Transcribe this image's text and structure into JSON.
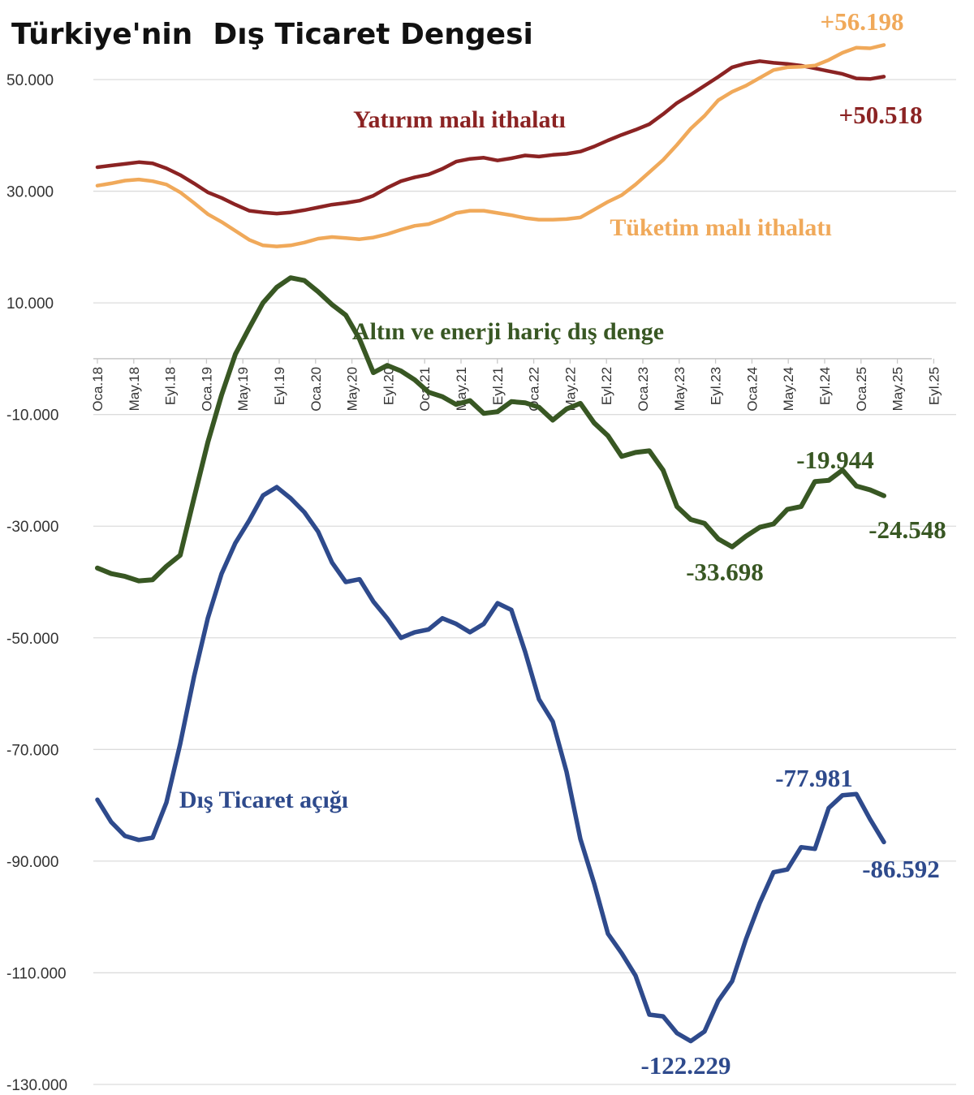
{
  "chart_data": {
    "type": "line",
    "title": "Türkiye'nin  Dış Ticaret Dengesi",
    "ylim": [
      -130000,
      50000
    ],
    "y_ticks": [
      {
        "value": 50000,
        "label": "50.000"
      },
      {
        "value": 30000,
        "label": "30.000"
      },
      {
        "value": 10000,
        "label": "10.000"
      },
      {
        "value": -10000,
        "label": "-10.000"
      },
      {
        "value": -30000,
        "label": "-30.000"
      },
      {
        "value": -50000,
        "label": "-50.000"
      },
      {
        "value": -70000,
        "label": "-70.000"
      },
      {
        "value": -90000,
        "label": "-90.000"
      },
      {
        "value": -110000,
        "label": "-110.000"
      },
      {
        "value": -130000,
        "label": "-130.000"
      }
    ],
    "x_ticks": [
      "Oca.18",
      "May.18",
      "Eyl.18",
      "Oca.19",
      "May.19",
      "Eyl.19",
      "Oca.20",
      "May.20",
      "Eyl.20",
      "Oca.21",
      "May.21",
      "Eyl.21",
      "Oca.22",
      "May.22",
      "Eyl.22",
      "Oca.23",
      "May.23",
      "Eyl.23",
      "Oca.24",
      "May.24",
      "Eyl.24",
      "Oca.25",
      "May.25",
      "Eyl.25"
    ],
    "grid": true,
    "legend": "none (series labelled directly on chart)",
    "series": [
      {
        "name": "Yatırım malı ithalatı",
        "color": "#8b2323",
        "label_pos": [
          566,
          157
        ],
        "end_annotation": {
          "text": "+50.518",
          "pos": [
            1085,
            152
          ]
        },
        "points": [
          [
            0,
            34300
          ],
          [
            1,
            34600
          ],
          [
            2,
            34900
          ],
          [
            3,
            35200
          ],
          [
            4,
            35000
          ],
          [
            5,
            34100
          ],
          [
            6,
            32900
          ],
          [
            7,
            31400
          ],
          [
            8,
            29800
          ],
          [
            9,
            28800
          ],
          [
            10,
            27600
          ],
          [
            11,
            26500
          ],
          [
            12,
            26200
          ],
          [
            13,
            26000
          ],
          [
            14,
            26200
          ],
          [
            15,
            26600
          ],
          [
            16,
            27100
          ],
          [
            17,
            27600
          ],
          [
            18,
            27900
          ],
          [
            19,
            28300
          ],
          [
            20,
            29200
          ],
          [
            21,
            30600
          ],
          [
            22,
            31800
          ],
          [
            23,
            32500
          ],
          [
            24,
            33000
          ],
          [
            25,
            34000
          ],
          [
            26,
            35300
          ],
          [
            27,
            35800
          ],
          [
            28,
            36000
          ],
          [
            29,
            35500
          ],
          [
            30,
            35900
          ],
          [
            31,
            36400
          ],
          [
            32,
            36200
          ],
          [
            33,
            36500
          ],
          [
            34,
            36700
          ],
          [
            35,
            37100
          ],
          [
            36,
            38000
          ],
          [
            37,
            39100
          ],
          [
            38,
            40100
          ],
          [
            39,
            41000
          ],
          [
            40,
            42000
          ],
          [
            41,
            43800
          ],
          [
            42,
            45800
          ],
          [
            43,
            47300
          ],
          [
            44,
            48900
          ],
          [
            45,
            50500
          ],
          [
            46,
            52200
          ],
          [
            47,
            52900
          ],
          [
            48,
            53300
          ],
          [
            49,
            53000
          ],
          [
            50,
            52800
          ],
          [
            51,
            52500
          ],
          [
            52,
            52000
          ],
          [
            53,
            51500
          ],
          [
            54,
            51000
          ],
          [
            55,
            50200
          ],
          [
            56,
            50100
          ],
          [
            57,
            50518
          ]
        ]
      },
      {
        "name": "Tüketim malı ithalatı",
        "color": "#f0a95a",
        "label_pos": [
          888,
          290
        ],
        "end_annotation": {
          "text": "+56.198",
          "pos": [
            1062,
            37
          ]
        },
        "points": [
          [
            0,
            31000
          ],
          [
            1,
            31400
          ],
          [
            2,
            31900
          ],
          [
            3,
            32100
          ],
          [
            4,
            31800
          ],
          [
            5,
            31200
          ],
          [
            6,
            29800
          ],
          [
            7,
            27900
          ],
          [
            8,
            25900
          ],
          [
            9,
            24500
          ],
          [
            10,
            22900
          ],
          [
            11,
            21300
          ],
          [
            12,
            20300
          ],
          [
            13,
            20100
          ],
          [
            14,
            20300
          ],
          [
            15,
            20800
          ],
          [
            16,
            21500
          ],
          [
            17,
            21800
          ],
          [
            18,
            21600
          ],
          [
            19,
            21400
          ],
          [
            20,
            21700
          ],
          [
            21,
            22300
          ],
          [
            22,
            23100
          ],
          [
            23,
            23800
          ],
          [
            24,
            24100
          ],
          [
            25,
            25000
          ],
          [
            26,
            26100
          ],
          [
            27,
            26500
          ],
          [
            28,
            26500
          ],
          [
            29,
            26100
          ],
          [
            30,
            25700
          ],
          [
            31,
            25200
          ],
          [
            32,
            24900
          ],
          [
            33,
            24900
          ],
          [
            34,
            25000
          ],
          [
            35,
            25300
          ],
          [
            36,
            26700
          ],
          [
            37,
            28100
          ],
          [
            38,
            29300
          ],
          [
            39,
            31200
          ],
          [
            40,
            33400
          ],
          [
            41,
            35600
          ],
          [
            42,
            38300
          ],
          [
            43,
            41200
          ],
          [
            44,
            43500
          ],
          [
            45,
            46300
          ],
          [
            46,
            47800
          ],
          [
            47,
            48900
          ],
          [
            48,
            50300
          ],
          [
            49,
            51700
          ],
          [
            50,
            52200
          ],
          [
            51,
            52300
          ],
          [
            52,
            52500
          ],
          [
            53,
            53500
          ],
          [
            54,
            54800
          ],
          [
            55,
            55700
          ],
          [
            56,
            55600
          ],
          [
            57,
            56198
          ]
        ]
      },
      {
        "name": "Altın ve enerji hariç dış denge",
        "color": "#385723",
        "label_pos": [
          626,
          418
        ],
        "annotations": [
          {
            "text": "-33.698",
            "pos": [
              893,
              715
            ]
          },
          {
            "text": "-19.944",
            "pos": [
              1029,
              577
            ]
          },
          {
            "text": "-24.548",
            "pos": [
              1118,
              663
            ]
          }
        ],
        "points": [
          [
            0,
            -37500
          ],
          [
            1,
            -38500
          ],
          [
            2,
            -39000
          ],
          [
            3,
            -39800
          ],
          [
            4,
            -39600
          ],
          [
            5,
            -37200
          ],
          [
            6,
            -35200
          ],
          [
            7,
            -25000
          ],
          [
            8,
            -15000
          ],
          [
            9,
            -6500
          ],
          [
            10,
            800
          ],
          [
            11,
            5500
          ],
          [
            12,
            10000
          ],
          [
            13,
            12800
          ],
          [
            14,
            14500
          ],
          [
            15,
            14000
          ],
          [
            16,
            12000
          ],
          [
            17,
            9700
          ],
          [
            18,
            7800
          ],
          [
            19,
            3500
          ],
          [
            20,
            -2500
          ],
          [
            21,
            -1200
          ],
          [
            22,
            -2200
          ],
          [
            23,
            -3800
          ],
          [
            24,
            -6000
          ],
          [
            25,
            -6800
          ],
          [
            26,
            -8200
          ],
          [
            27,
            -7500
          ],
          [
            28,
            -9800
          ],
          [
            29,
            -9500
          ],
          [
            30,
            -7700
          ],
          [
            31,
            -7900
          ],
          [
            32,
            -8700
          ],
          [
            33,
            -11000
          ],
          [
            34,
            -9000
          ],
          [
            35,
            -8000
          ],
          [
            36,
            -11500
          ],
          [
            37,
            -13800
          ],
          [
            38,
            -17500
          ],
          [
            39,
            -16800
          ],
          [
            40,
            -16500
          ],
          [
            41,
            -20000
          ],
          [
            42,
            -26500
          ],
          [
            43,
            -28800
          ],
          [
            44,
            -29500
          ],
          [
            45,
            -32300
          ],
          [
            46,
            -33698
          ],
          [
            47,
            -31800
          ],
          [
            48,
            -30200
          ],
          [
            49,
            -29600
          ],
          [
            50,
            -27000
          ],
          [
            51,
            -26500
          ],
          [
            52,
            -22000
          ],
          [
            53,
            -21800
          ],
          [
            54,
            -19944
          ],
          [
            55,
            -22800
          ],
          [
            56,
            -23500
          ],
          [
            57,
            -24548
          ]
        ]
      },
      {
        "name": "Dış Ticaret açığı",
        "color": "#2e4a8c",
        "label_pos": [
          325,
          995
        ],
        "annotations": [
          {
            "text": "-122.229",
            "pos": [
              845,
              1323
            ]
          },
          {
            "text": "-77.981",
            "pos": [
              1003,
              969
            ]
          },
          {
            "text": "-86.592",
            "pos": [
              1110,
              1081
            ]
          }
        ],
        "points": [
          [
            0,
            -79000
          ],
          [
            1,
            -83000
          ],
          [
            2,
            -85500
          ],
          [
            3,
            -86200
          ],
          [
            4,
            -85800
          ],
          [
            5,
            -79500
          ],
          [
            6,
            -69000
          ],
          [
            7,
            -57000
          ],
          [
            8,
            -46500
          ],
          [
            9,
            -38500
          ],
          [
            10,
            -33000
          ],
          [
            11,
            -29000
          ],
          [
            12,
            -24500
          ],
          [
            13,
            -23000
          ],
          [
            14,
            -25000
          ],
          [
            15,
            -27500
          ],
          [
            16,
            -31000
          ],
          [
            17,
            -36500
          ],
          [
            18,
            -40000
          ],
          [
            19,
            -39500
          ],
          [
            20,
            -43500
          ],
          [
            21,
            -46500
          ],
          [
            22,
            -50000
          ],
          [
            23,
            -49000
          ],
          [
            24,
            -48500
          ],
          [
            25,
            -46500
          ],
          [
            26,
            -47500
          ],
          [
            27,
            -49000
          ],
          [
            28,
            -47500
          ],
          [
            29,
            -43800
          ],
          [
            30,
            -45000
          ],
          [
            31,
            -52500
          ],
          [
            32,
            -61000
          ],
          [
            33,
            -65000
          ],
          [
            34,
            -74000
          ],
          [
            35,
            -86000
          ],
          [
            36,
            -94000
          ],
          [
            37,
            -103000
          ],
          [
            38,
            -106500
          ],
          [
            39,
            -110500
          ],
          [
            40,
            -117500
          ],
          [
            41,
            -117800
          ],
          [
            42,
            -120800
          ],
          [
            43,
            -122229
          ],
          [
            44,
            -120500
          ],
          [
            45,
            -115000
          ],
          [
            46,
            -111500
          ],
          [
            47,
            -104000
          ],
          [
            48,
            -97500
          ],
          [
            49,
            -92000
          ],
          [
            50,
            -91500
          ],
          [
            51,
            -87500
          ],
          [
            52,
            -87800
          ],
          [
            53,
            -80500
          ],
          [
            54,
            -78200
          ],
          [
            55,
            -77981
          ],
          [
            56,
            -82500
          ],
          [
            57,
            -86592
          ]
        ]
      }
    ]
  }
}
